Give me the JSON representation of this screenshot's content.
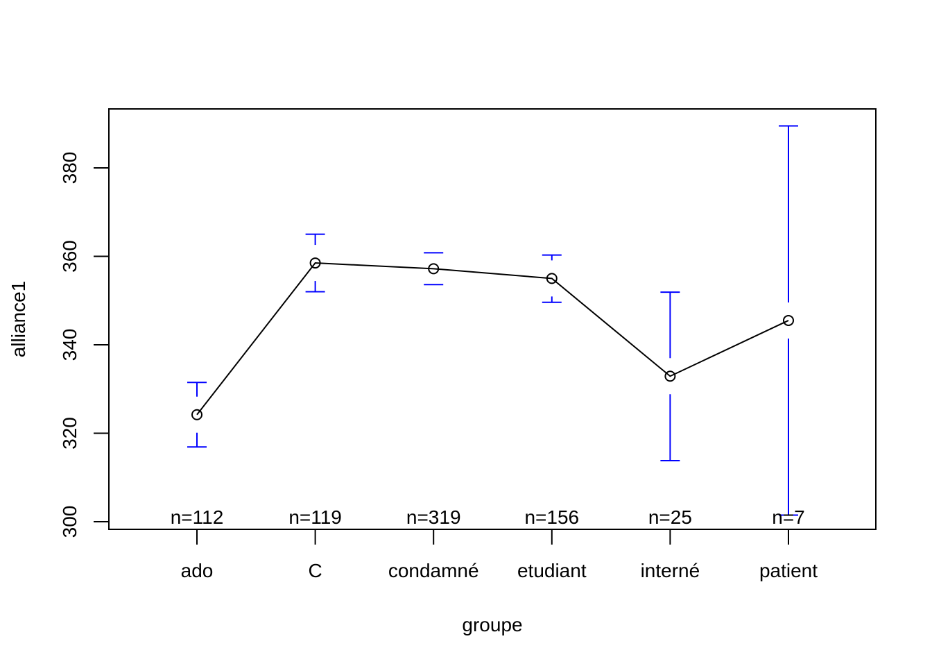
{
  "chart_data": {
    "type": "line",
    "title": "",
    "xlabel": "groupe",
    "ylabel": "alliance1",
    "ylim": [
      300,
      392
    ],
    "yticks": [
      300,
      320,
      340,
      360,
      380
    ],
    "categories": [
      "ado",
      "C",
      "condamné",
      "etudiant",
      "interné",
      "patient"
    ],
    "n_labels": [
      "n=112",
      "n=119",
      "n=319",
      "n=156",
      "n=25",
      "n=7"
    ],
    "means": [
      324.2,
      358.5,
      357.2,
      355.0,
      332.9,
      345.5
    ],
    "ci_lower": [
      316.9,
      352.0,
      353.6,
      349.6,
      313.8,
      301.5
    ],
    "ci_upper": [
      331.5,
      365.0,
      360.8,
      360.3,
      351.9,
      389.5
    ],
    "grid": false,
    "legend": "none",
    "colors": {
      "line": "#000000",
      "error_bars": "#0000ff"
    }
  }
}
